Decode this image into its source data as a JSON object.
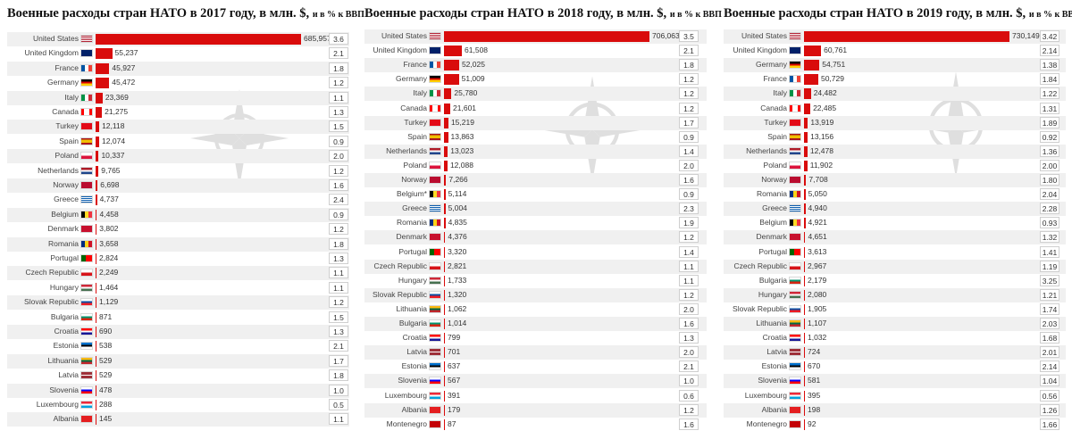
{
  "chart_data": [
    {
      "type": "bar",
      "title_main": "Военные расходы стран НАТО в 2017 году, в млн. $,",
      "title_small": "и в % к ВВП",
      "xlim": [
        0,
        685957
      ],
      "rows": [
        {
          "country": "United States",
          "flag": "us",
          "value": 685957,
          "value_label": "685,957",
          "gdp_pct": "3.6"
        },
        {
          "country": "United Kingdom",
          "flag": "gb",
          "value": 55237,
          "value_label": "55,237",
          "gdp_pct": "2.1"
        },
        {
          "country": "France",
          "flag": "fr",
          "value": 45927,
          "value_label": "45,927",
          "gdp_pct": "1.8"
        },
        {
          "country": "Germany",
          "flag": "de",
          "value": 45472,
          "value_label": "45,472",
          "gdp_pct": "1.2"
        },
        {
          "country": "Italy",
          "flag": "it",
          "value": 23369,
          "value_label": "23,369",
          "gdp_pct": "1.1"
        },
        {
          "country": "Canada",
          "flag": "ca",
          "value": 21275,
          "value_label": "21,275",
          "gdp_pct": "1.3"
        },
        {
          "country": "Turkey",
          "flag": "tr",
          "value": 12118,
          "value_label": "12,118",
          "gdp_pct": "1.5"
        },
        {
          "country": "Spain",
          "flag": "es",
          "value": 12074,
          "value_label": "12,074",
          "gdp_pct": "0.9"
        },
        {
          "country": "Poland",
          "flag": "pl",
          "value": 10337,
          "value_label": "10,337",
          "gdp_pct": "2.0"
        },
        {
          "country": "Netherlands",
          "flag": "nl",
          "value": 9765,
          "value_label": "9,765",
          "gdp_pct": "1.2"
        },
        {
          "country": "Norway",
          "flag": "no",
          "value": 6698,
          "value_label": "6,698",
          "gdp_pct": "1.6"
        },
        {
          "country": "Greece",
          "flag": "gr",
          "value": 4737,
          "value_label": "4,737",
          "gdp_pct": "2.4"
        },
        {
          "country": "Belgium",
          "flag": "be",
          "value": 4458,
          "value_label": "4,458",
          "gdp_pct": "0.9"
        },
        {
          "country": "Denmark",
          "flag": "dk",
          "value": 3802,
          "value_label": "3,802",
          "gdp_pct": "1.2"
        },
        {
          "country": "Romania",
          "flag": "ro",
          "value": 3658,
          "value_label": "3,658",
          "gdp_pct": "1.8"
        },
        {
          "country": "Portugal",
          "flag": "pt",
          "value": 2824,
          "value_label": "2,824",
          "gdp_pct": "1.3"
        },
        {
          "country": "Czech Republic",
          "flag": "cz",
          "value": 2249,
          "value_label": "2,249",
          "gdp_pct": "1.1"
        },
        {
          "country": "Hungary",
          "flag": "hu",
          "value": 1464,
          "value_label": "1,464",
          "gdp_pct": "1.1"
        },
        {
          "country": "Slovak Republic",
          "flag": "sk",
          "value": 1129,
          "value_label": "1,129",
          "gdp_pct": "1.2"
        },
        {
          "country": "Bulgaria",
          "flag": "bg",
          "value": 871,
          "value_label": "871",
          "gdp_pct": "1.5"
        },
        {
          "country": "Croatia",
          "flag": "hr",
          "value": 690,
          "value_label": "690",
          "gdp_pct": "1.3"
        },
        {
          "country": "Estonia",
          "flag": "ee",
          "value": 538,
          "value_label": "538",
          "gdp_pct": "2.1"
        },
        {
          "country": "Lithuania",
          "flag": "lt",
          "value": 529,
          "value_label": "529",
          "gdp_pct": "1.7"
        },
        {
          "country": "Latvia",
          "flag": "lv",
          "value": 529,
          "value_label": "529",
          "gdp_pct": "1.8"
        },
        {
          "country": "Slovenia",
          "flag": "si",
          "value": 478,
          "value_label": "478",
          "gdp_pct": "1.0"
        },
        {
          "country": "Luxembourg",
          "flag": "lu",
          "value": 288,
          "value_label": "288",
          "gdp_pct": "0.5"
        },
        {
          "country": "Albania",
          "flag": "al",
          "value": 145,
          "value_label": "145",
          "gdp_pct": "1.1"
        }
      ]
    },
    {
      "type": "bar",
      "title_main": "Военные расходы стран НАТО в 2018 году, в млн. $,",
      "title_small": "и в % к ВВП",
      "xlim": [
        0,
        706063
      ],
      "rows": [
        {
          "country": "United States",
          "flag": "us",
          "value": 706063,
          "value_label": "706,063",
          "gdp_pct": "3.5"
        },
        {
          "country": "United Kingdom",
          "flag": "gb",
          "value": 61508,
          "value_label": "61,508",
          "gdp_pct": "2.1"
        },
        {
          "country": "France",
          "flag": "fr",
          "value": 52025,
          "value_label": "52,025",
          "gdp_pct": "1.8"
        },
        {
          "country": "Germany",
          "flag": "de",
          "value": 51009,
          "value_label": "51,009",
          "gdp_pct": "1.2"
        },
        {
          "country": "Italy",
          "flag": "it",
          "value": 25780,
          "value_label": "25,780",
          "gdp_pct": "1.2"
        },
        {
          "country": "Canada",
          "flag": "ca",
          "value": 21601,
          "value_label": "21,601",
          "gdp_pct": "1.2"
        },
        {
          "country": "Turkey",
          "flag": "tr",
          "value": 15219,
          "value_label": "15,219",
          "gdp_pct": "1.7"
        },
        {
          "country": "Spain",
          "flag": "es",
          "value": 13863,
          "value_label": "13,863",
          "gdp_pct": "0.9"
        },
        {
          "country": "Netherlands",
          "flag": "nl",
          "value": 13023,
          "value_label": "13,023",
          "gdp_pct": "1.4"
        },
        {
          "country": "Poland",
          "flag": "pl",
          "value": 12088,
          "value_label": "12,088",
          "gdp_pct": "2.0"
        },
        {
          "country": "Norway",
          "flag": "no",
          "value": 7266,
          "value_label": "7,266",
          "gdp_pct": "1.6"
        },
        {
          "country": "Belgium*",
          "flag": "be",
          "value": 5114,
          "value_label": "5,114",
          "gdp_pct": "0.9"
        },
        {
          "country": "Greece",
          "flag": "gr",
          "value": 5004,
          "value_label": "5,004",
          "gdp_pct": "2.3"
        },
        {
          "country": "Romania",
          "flag": "ro",
          "value": 4835,
          "value_label": "4,835",
          "gdp_pct": "1.9"
        },
        {
          "country": "Denmark",
          "flag": "dk",
          "value": 4376,
          "value_label": "4,376",
          "gdp_pct": "1.2"
        },
        {
          "country": "Portugal",
          "flag": "pt",
          "value": 3320,
          "value_label": "3,320",
          "gdp_pct": "1.4"
        },
        {
          "country": "Czech Republic",
          "flag": "cz",
          "value": 2821,
          "value_label": "2,821",
          "gdp_pct": "1.1"
        },
        {
          "country": "Hungary",
          "flag": "hu",
          "value": 1733,
          "value_label": "1,733",
          "gdp_pct": "1.1"
        },
        {
          "country": "Slovak Republic",
          "flag": "sk",
          "value": 1320,
          "value_label": "1,320",
          "gdp_pct": "1.2"
        },
        {
          "country": "Lithuania",
          "flag": "lt",
          "value": 1062,
          "value_label": "1,062",
          "gdp_pct": "2.0"
        },
        {
          "country": "Bulgaria",
          "flag": "bg",
          "value": 1014,
          "value_label": "1,014",
          "gdp_pct": "1.6"
        },
        {
          "country": "Croatia",
          "flag": "hr",
          "value": 799,
          "value_label": "799",
          "gdp_pct": "1.3"
        },
        {
          "country": "Latvia",
          "flag": "lv",
          "value": 701,
          "value_label": "701",
          "gdp_pct": "2.0"
        },
        {
          "country": "Estonia",
          "flag": "ee",
          "value": 637,
          "value_label": "637",
          "gdp_pct": "2.1"
        },
        {
          "country": "Slovenia",
          "flag": "si",
          "value": 567,
          "value_label": "567",
          "gdp_pct": "1.0"
        },
        {
          "country": "Luxembourg",
          "flag": "lu",
          "value": 391,
          "value_label": "391",
          "gdp_pct": "0.6"
        },
        {
          "country": "Albania",
          "flag": "al",
          "value": 179,
          "value_label": "179",
          "gdp_pct": "1.2"
        },
        {
          "country": "Montenegro",
          "flag": "me",
          "value": 87,
          "value_label": "87",
          "gdp_pct": "1.6"
        }
      ]
    },
    {
      "type": "bar",
      "title_main": "Военные расходы стран НАТО в 2019 году, в млн. $,",
      "title_small": "и в % к ВВП",
      "xlim": [
        0,
        730149
      ],
      "rows": [
        {
          "country": "United States",
          "flag": "us",
          "value": 730149,
          "value_label": "730,149",
          "gdp_pct": "3.42"
        },
        {
          "country": "United Kingdom",
          "flag": "gb",
          "value": 60761,
          "value_label": "60,761",
          "gdp_pct": "2.14"
        },
        {
          "country": "Germany",
          "flag": "de",
          "value": 54751,
          "value_label": "54,751",
          "gdp_pct": "1.38"
        },
        {
          "country": "France",
          "flag": "fr",
          "value": 50729,
          "value_label": "50,729",
          "gdp_pct": "1.84"
        },
        {
          "country": "Italy",
          "flag": "it",
          "value": 24482,
          "value_label": "24,482",
          "gdp_pct": "1.22"
        },
        {
          "country": "Canada",
          "flag": "ca",
          "value": 22485,
          "value_label": "22,485",
          "gdp_pct": "1.31"
        },
        {
          "country": "Turkey",
          "flag": "tr",
          "value": 13919,
          "value_label": "13,919",
          "gdp_pct": "1.89"
        },
        {
          "country": "Spain",
          "flag": "es",
          "value": 13156,
          "value_label": "13,156",
          "gdp_pct": "0.92"
        },
        {
          "country": "Netherlands",
          "flag": "nl",
          "value": 12478,
          "value_label": "12,478",
          "gdp_pct": "1.36"
        },
        {
          "country": "Poland",
          "flag": "pl",
          "value": 11902,
          "value_label": "11,902",
          "gdp_pct": "2.00"
        },
        {
          "country": "Norway",
          "flag": "no",
          "value": 7708,
          "value_label": "7,708",
          "gdp_pct": "1.80"
        },
        {
          "country": "Romania",
          "flag": "ro",
          "value": 5050,
          "value_label": "5,050",
          "gdp_pct": "2.04"
        },
        {
          "country": "Greece",
          "flag": "gr",
          "value": 4940,
          "value_label": "4,940",
          "gdp_pct": "2.28"
        },
        {
          "country": "Belgium",
          "flag": "be",
          "value": 4921,
          "value_label": "4,921",
          "gdp_pct": "0.93"
        },
        {
          "country": "Denmark",
          "flag": "dk",
          "value": 4651,
          "value_label": "4,651",
          "gdp_pct": "1.32"
        },
        {
          "country": "Portugal",
          "flag": "pt",
          "value": 3613,
          "value_label": "3,613",
          "gdp_pct": "1.41"
        },
        {
          "country": "Czech Republic",
          "flag": "cz",
          "value": 2967,
          "value_label": "2,967",
          "gdp_pct": "1.19"
        },
        {
          "country": "Bulgaria",
          "flag": "bg",
          "value": 2179,
          "value_label": "2,179",
          "gdp_pct": "3.25"
        },
        {
          "country": "Hungary",
          "flag": "hu",
          "value": 2080,
          "value_label": "2,080",
          "gdp_pct": "1.21"
        },
        {
          "country": "Slovak Republic",
          "flag": "sk",
          "value": 1905,
          "value_label": "1,905",
          "gdp_pct": "1.74"
        },
        {
          "country": "Lithuania",
          "flag": "lt",
          "value": 1107,
          "value_label": "1,107",
          "gdp_pct": "2.03"
        },
        {
          "country": "Croatia",
          "flag": "hr",
          "value": 1032,
          "value_label": "1,032",
          "gdp_pct": "1.68"
        },
        {
          "country": "Latvia",
          "flag": "lv",
          "value": 724,
          "value_label": "724",
          "gdp_pct": "2.01"
        },
        {
          "country": "Estonia",
          "flag": "ee",
          "value": 670,
          "value_label": "670",
          "gdp_pct": "2.14"
        },
        {
          "country": "Slovenia",
          "flag": "si",
          "value": 581,
          "value_label": "581",
          "gdp_pct": "1.04"
        },
        {
          "country": "Luxembourg",
          "flag": "lu",
          "value": 395,
          "value_label": "395",
          "gdp_pct": "0.56"
        },
        {
          "country": "Albania",
          "flag": "al",
          "value": 198,
          "value_label": "198",
          "gdp_pct": "1.26"
        },
        {
          "country": "Montenegro",
          "flag": "me",
          "value": 92,
          "value_label": "92",
          "gdp_pct": "1.66"
        }
      ]
    }
  ],
  "colors": {
    "bar": "#d90c0c",
    "row_shade": "#f0f0f0"
  }
}
